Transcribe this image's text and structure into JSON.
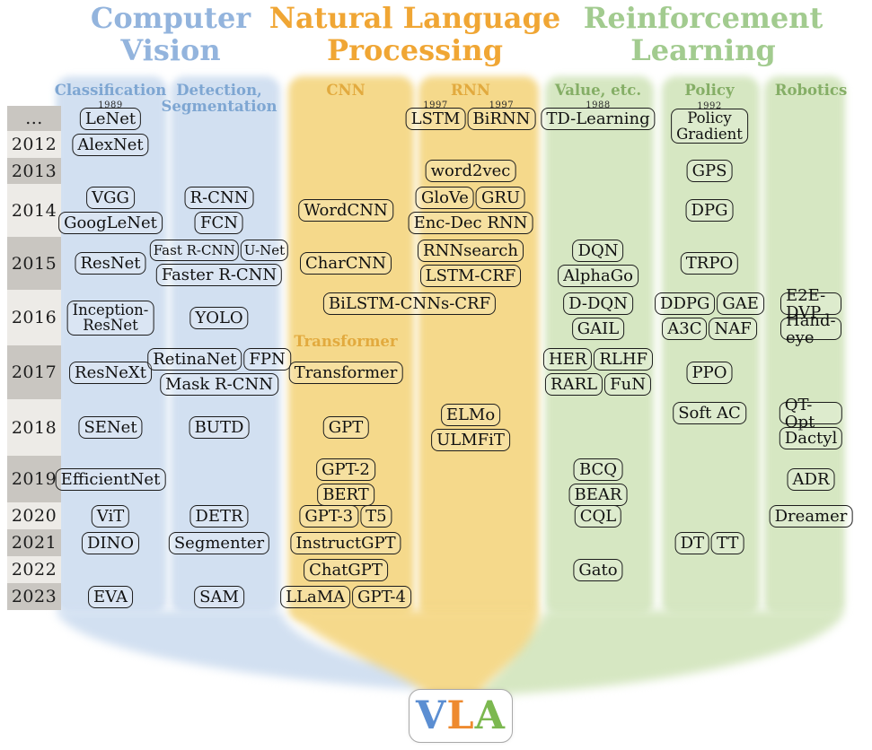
{
  "headers": {
    "cv": {
      "line1": "Computer",
      "line2": "Vision"
    },
    "nlp": {
      "line1": "Natural Language",
      "line2": "Processing"
    },
    "rl": {
      "line1": "Reinforcement",
      "line2": "Learning"
    }
  },
  "colors": {
    "cv-band": "#d2e0f1",
    "nlp-band": "#f5d98b",
    "rl-band": "#d6e7c2",
    "cv-header": "#93b4dd",
    "nlp-header": "#f0a634",
    "rl-header": "#a2cb8f",
    "cv-sub": "#7ea6d2",
    "nlp-sub": "#e2aa3e",
    "rl-sub": "#85ae66",
    "year-dark": "#c9c6c1",
    "year-light": "#edebe7"
  },
  "timeline": {
    "transformer_section_label": "Transformer",
    "years": [
      {
        "key": "pre",
        "label": "...",
        "shade": "dark"
      },
      {
        "key": "2012",
        "label": "2012",
        "shade": "light"
      },
      {
        "key": "2013",
        "label": "2013",
        "shade": "dark"
      },
      {
        "key": "2014",
        "label": "2014",
        "shade": "light"
      },
      {
        "key": "2015",
        "label": "2015",
        "shade": "dark"
      },
      {
        "key": "2016",
        "label": "2016",
        "shade": "light"
      },
      {
        "key": "2017",
        "label": "2017",
        "shade": "dark"
      },
      {
        "key": "2018",
        "label": "2018",
        "shade": "light"
      },
      {
        "key": "2019",
        "label": "2019",
        "shade": "dark"
      },
      {
        "key": "2020",
        "label": "2020",
        "shade": "light"
      },
      {
        "key": "2021",
        "label": "2021",
        "shade": "dark"
      },
      {
        "key": "2022",
        "label": "2022",
        "shade": "light"
      },
      {
        "key": "2023",
        "label": "2023",
        "shade": "dark"
      }
    ],
    "columns": [
      {
        "key": "classification",
        "label": "Classification",
        "group": "cv"
      },
      {
        "key": "detection",
        "label": "Detection,\nSegmentation",
        "group": "cv"
      },
      {
        "key": "cnn",
        "label": "CNN",
        "group": "nlp"
      },
      {
        "key": "rnn",
        "label": "RNN",
        "group": "nlp"
      },
      {
        "key": "value",
        "label": "Value, etc.",
        "group": "rl"
      },
      {
        "key": "policy",
        "label": "Policy",
        "group": "rl"
      },
      {
        "key": "robotics",
        "label": "Robotics",
        "group": "rl"
      }
    ],
    "cells": [
      {
        "year": "pre",
        "col": "classification",
        "lines": [
          [
            {
              "label": "LeNet",
              "note": "1989"
            }
          ]
        ]
      },
      {
        "year": "pre",
        "col": "rnn",
        "lines": [
          [
            {
              "label": "LSTM",
              "note": "1997"
            },
            {
              "label": "BiRNN",
              "note": "1997"
            }
          ]
        ]
      },
      {
        "year": "pre",
        "col": "value",
        "lines": [
          [
            {
              "label": "TD-Learning",
              "note": "1988"
            }
          ]
        ]
      },
      {
        "year": "pre",
        "col": "policy",
        "top": true,
        "lines": [
          [
            {
              "label": "Policy\nGradient",
              "note": "1992"
            }
          ]
        ]
      },
      {
        "year": "2012",
        "col": "classification",
        "lines": [
          [
            "AlexNet"
          ]
        ]
      },
      {
        "year": "2013",
        "col": "rnn",
        "lines": [
          [
            "word2vec"
          ]
        ]
      },
      {
        "year": "2013",
        "col": "policy",
        "lines": [
          [
            "GPS"
          ]
        ]
      },
      {
        "year": "2014",
        "col": "classification",
        "top": true,
        "lines": [
          [
            "VGG"
          ],
          [
            "GoogLeNet"
          ]
        ]
      },
      {
        "year": "2014",
        "col": "detection",
        "top": true,
        "lines": [
          [
            "R-CNN"
          ],
          [
            "FCN"
          ]
        ]
      },
      {
        "year": "2014",
        "col": "cnn",
        "lines": [
          [
            "WordCNN"
          ]
        ]
      },
      {
        "year": "2014",
        "col": "rnn",
        "top": true,
        "lines": [
          [
            "GloVe",
            "GRU"
          ],
          [
            "Enc-Dec RNN"
          ]
        ]
      },
      {
        "year": "2014",
        "col": "policy",
        "lines": [
          [
            "DPG"
          ]
        ]
      },
      {
        "year": "2015",
        "col": "classification",
        "lines": [
          [
            "ResNet"
          ]
        ]
      },
      {
        "year": "2015",
        "col": "detection",
        "top": true,
        "lines": [
          [
            {
              "label": "Fast R-CNN",
              "small": true
            },
            {
              "label": "U-Net",
              "small": true
            }
          ],
          [
            "Faster R-CNN"
          ]
        ]
      },
      {
        "year": "2015",
        "col": "cnn",
        "lines": [
          [
            "CharCNN"
          ]
        ]
      },
      {
        "year": "2015",
        "col": "rnn",
        "top": true,
        "lines": [
          [
            "RNNsearch"
          ],
          [
            "LSTM-CRF"
          ]
        ]
      },
      {
        "year": "2015",
        "col": "value",
        "top": true,
        "lines": [
          [
            "DQN"
          ],
          [
            "AlphaGo"
          ]
        ]
      },
      {
        "year": "2015",
        "col": "policy",
        "lines": [
          [
            "TRPO"
          ]
        ]
      },
      {
        "year": "2016",
        "col": "classification",
        "lines": [
          [
            {
              "label": "Inception-\nResNet"
            }
          ]
        ]
      },
      {
        "year": "2016",
        "col": "detection",
        "lines": [
          [
            "YOLO"
          ]
        ]
      },
      {
        "year": "2016",
        "col": "nlp_span",
        "top": true,
        "lines": [
          [
            "BiLSTM-CNNs-CRF"
          ]
        ]
      },
      {
        "year": "2016",
        "col": "value",
        "top": true,
        "lines": [
          [
            "D-DQN"
          ],
          [
            "GAIL"
          ]
        ]
      },
      {
        "year": "2016",
        "col": "policy",
        "top": true,
        "lines": [
          [
            "DDPG",
            "GAE"
          ],
          [
            "A3C",
            "NAF"
          ]
        ]
      },
      {
        "year": "2016",
        "col": "robotics",
        "top": true,
        "lines": [
          [
            "E2E-DVP"
          ],
          [
            "Hand-eye"
          ]
        ]
      },
      {
        "year": "2017",
        "col": "classification",
        "lines": [
          [
            "ResNeXt"
          ]
        ]
      },
      {
        "year": "2017",
        "col": "detection",
        "top": true,
        "lines": [
          [
            "RetinaNet",
            "FPN"
          ],
          [
            "Mask R-CNN"
          ]
        ]
      },
      {
        "year": "2017",
        "col": "cnn",
        "lines": [
          [
            "Transformer"
          ]
        ]
      },
      {
        "year": "2017",
        "col": "value",
        "top": true,
        "lines": [
          [
            "HER",
            "RLHF"
          ],
          [
            "RARL",
            "FuN"
          ]
        ]
      },
      {
        "year": "2017",
        "col": "policy",
        "lines": [
          [
            "PPO"
          ]
        ]
      },
      {
        "year": "2018",
        "col": "classification",
        "lines": [
          [
            "SENet"
          ]
        ]
      },
      {
        "year": "2018",
        "col": "detection",
        "lines": [
          [
            "BUTD"
          ]
        ]
      },
      {
        "year": "2018",
        "col": "cnn",
        "lines": [
          [
            "GPT"
          ]
        ]
      },
      {
        "year": "2018",
        "col": "rnn",
        "lines": [
          [
            "ELMo"
          ],
          [
            "ULMFiT"
          ]
        ]
      },
      {
        "year": "2018",
        "col": "policy",
        "top": true,
        "lines": [
          [
            "Soft AC"
          ]
        ]
      },
      {
        "year": "2018",
        "col": "robotics",
        "top": true,
        "lines": [
          [
            "QT-Opt"
          ],
          [
            "Dactyl"
          ]
        ]
      },
      {
        "year": "2019",
        "col": "classification",
        "lines": [
          [
            "EfficientNet"
          ]
        ]
      },
      {
        "year": "2019",
        "col": "cnn",
        "top": true,
        "lines": [
          [
            "GPT-2"
          ],
          [
            "BERT"
          ]
        ]
      },
      {
        "year": "2019",
        "col": "value",
        "top": true,
        "lines": [
          [
            "BCQ"
          ],
          [
            "BEAR"
          ]
        ]
      },
      {
        "year": "2019",
        "col": "robotics",
        "lines": [
          [
            "ADR"
          ]
        ]
      },
      {
        "year": "2020",
        "col": "classification",
        "lines": [
          [
            "ViT"
          ]
        ]
      },
      {
        "year": "2020",
        "col": "detection",
        "lines": [
          [
            "DETR"
          ]
        ]
      },
      {
        "year": "2020",
        "col": "cnn",
        "lines": [
          [
            "GPT-3",
            "T5"
          ]
        ]
      },
      {
        "year": "2020",
        "col": "value",
        "lines": [
          [
            "CQL"
          ]
        ]
      },
      {
        "year": "2020",
        "col": "robotics",
        "lines": [
          [
            "Dreamer"
          ]
        ]
      },
      {
        "year": "2021",
        "col": "classification",
        "lines": [
          [
            "DINO"
          ]
        ]
      },
      {
        "year": "2021",
        "col": "detection",
        "lines": [
          [
            "Segmenter"
          ]
        ]
      },
      {
        "year": "2021",
        "col": "cnn",
        "lines": [
          [
            "InstructGPT"
          ]
        ]
      },
      {
        "year": "2021",
        "col": "policy",
        "lines": [
          [
            "DT",
            "TT"
          ]
        ]
      },
      {
        "year": "2022",
        "col": "cnn",
        "lines": [
          [
            "ChatGPT"
          ]
        ]
      },
      {
        "year": "2022",
        "col": "value",
        "lines": [
          [
            "Gato"
          ]
        ]
      },
      {
        "year": "2023",
        "col": "classification",
        "lines": [
          [
            "EVA"
          ]
        ]
      },
      {
        "year": "2023",
        "col": "detection",
        "lines": [
          [
            "SAM"
          ]
        ]
      },
      {
        "year": "2023",
        "col": "cnn",
        "lines": [
          [
            "LLaMA",
            "GPT-4"
          ]
        ]
      }
    ]
  },
  "vla": {
    "letters": [
      {
        "char": "V",
        "color": "#5b8ed2"
      },
      {
        "char": "L",
        "color": "#ee8a2f"
      },
      {
        "char": "A",
        "color": "#7cb850"
      }
    ]
  }
}
